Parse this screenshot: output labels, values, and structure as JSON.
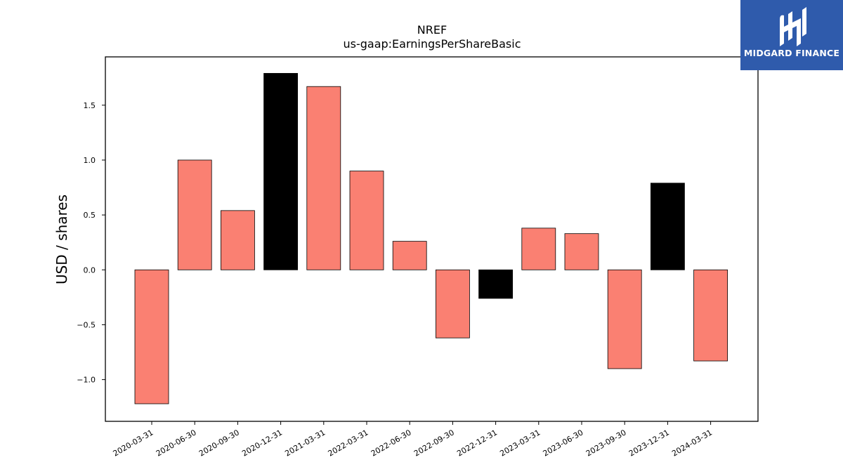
{
  "chart_data": {
    "type": "bar",
    "title": "NREF",
    "subtitle": "us-gaap:EarningsPerShareBasic",
    "xlabel": "",
    "ylabel": "USD / shares",
    "ylim": [
      -1.38,
      1.94
    ],
    "yticks": [
      -1.0,
      -0.5,
      0.0,
      0.5,
      1.0,
      1.5
    ],
    "ytick_labels": [
      "−1.0",
      "−0.5",
      "0.0",
      "0.5",
      "1.0",
      "1.5"
    ],
    "grid": false,
    "categories": [
      "2020-03-31",
      "2020-06-30",
      "2020-09-30",
      "2020-12-31",
      "2021-03-31",
      "2022-03-31",
      "2022-06-30",
      "2022-09-30",
      "2022-12-31",
      "2023-03-31",
      "2023-06-30",
      "2023-09-30",
      "2023-12-31",
      "2024-03-31"
    ],
    "values": [
      -1.22,
      1.0,
      0.54,
      1.79,
      1.67,
      0.9,
      0.26,
      -0.62,
      -0.26,
      0.38,
      0.33,
      -0.9,
      0.79,
      -0.83
    ],
    "bar_colors": [
      "#fa8072",
      "#fa8072",
      "#fa8072",
      "#000000",
      "#fa8072",
      "#fa8072",
      "#fa8072",
      "#fa8072",
      "#000000",
      "#fa8072",
      "#fa8072",
      "#fa8072",
      "#000000",
      "#fa8072"
    ]
  },
  "logo": {
    "text": "MIDGARD FINANCE",
    "background": "#2f5bac"
  }
}
